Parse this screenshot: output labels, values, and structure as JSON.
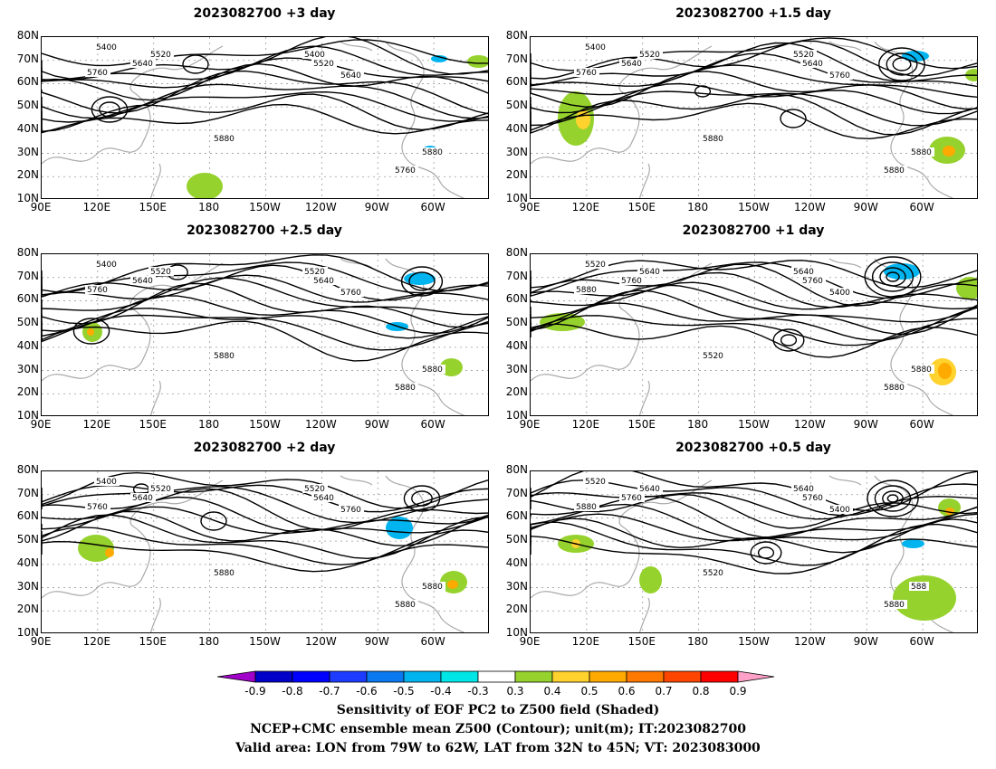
{
  "panels": [
    {
      "title": "2023082700 +3 day",
      "contour_labels": [
        "5400",
        "5520",
        "5640",
        "5760",
        "5880",
        "5400",
        "5520",
        "5640",
        "5760",
        "5880"
      ]
    },
    {
      "title": "2023082700 +1.5 day",
      "contour_labels": [
        "5400",
        "5520",
        "5640",
        "5760",
        "5880",
        "5520",
        "5640",
        "5760",
        "5880",
        "5880"
      ]
    },
    {
      "title": "2023082700 +2.5 day",
      "contour_labels": [
        "5400",
        "5520",
        "5640",
        "5760",
        "5880",
        "5520",
        "5640",
        "5760",
        "5880",
        "5880"
      ]
    },
    {
      "title": "2023082700 +1 day",
      "contour_labels": [
        "5520",
        "5640",
        "5760",
        "5880",
        "5520",
        "5640",
        "5760",
        "5400",
        "5880",
        "5880"
      ]
    },
    {
      "title": "2023082700 +2 day",
      "contour_labels": [
        "5400",
        "5520",
        "5640",
        "5760",
        "5880",
        "5520",
        "5640",
        "5760",
        "5880",
        "5880"
      ]
    },
    {
      "title": "2023082700 +0.5 day",
      "contour_labels": [
        "5520",
        "5640",
        "5760",
        "5880",
        "5520",
        "5640",
        "5760",
        "5400",
        "5880",
        "588"
      ]
    }
  ],
  "axes": {
    "lat_ticks": [
      "80N",
      "70N",
      "60N",
      "50N",
      "40N",
      "30N",
      "20N",
      "10N"
    ],
    "lon_ticks": [
      "90E",
      "120E",
      "150E",
      "180",
      "150W",
      "120W",
      "90W",
      "60W"
    ]
  },
  "colorbar": {
    "labels": [
      "-0.9",
      "-0.8",
      "-0.7",
      "-0.6",
      "-0.5",
      "-0.4",
      "-0.3",
      "0.3",
      "0.4",
      "0.5",
      "0.6",
      "0.7",
      "0.8",
      "0.9"
    ],
    "colors": [
      "#a000c8",
      "#0000c8",
      "#0000ff",
      "#1e3cff",
      "#0a78f0",
      "#00b4f0",
      "#00e6e6",
      "#ffffff",
      "#96d22d",
      "#ffd22d",
      "#ffaa00",
      "#ff7800",
      "#ff4600",
      "#ff0000",
      "#ffa0c8"
    ]
  },
  "caption": {
    "line1": "Sensitivity of EOF PC2 to Z500 field (Shaded)",
    "line2": "NCEP+CMC ensemble mean Z500 (Contour); unit(m); IT:2023082700",
    "line3": "Valid area: LON from 79W to 62W, LAT from 32N to 45N; VT: 2023083000"
  }
}
